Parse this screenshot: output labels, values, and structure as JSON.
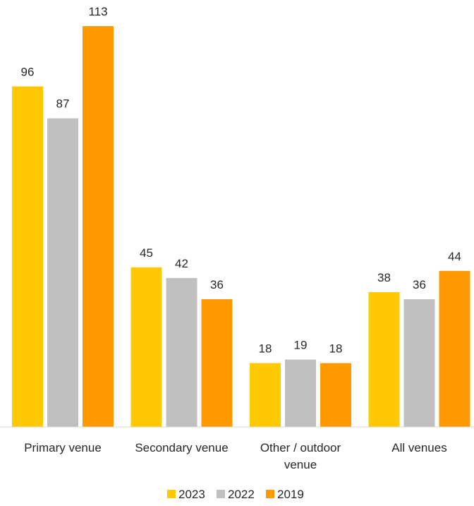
{
  "chart_data": {
    "type": "bar",
    "title": "",
    "xlabel": "",
    "ylabel": "",
    "ylim": [
      0,
      113
    ],
    "grid": false,
    "legend_position": "bottom",
    "categories": [
      [
        "Primary venue"
      ],
      [
        "Secondary venue"
      ],
      [
        "Other  / outdoor",
        "venue"
      ],
      [
        "All venues"
      ]
    ],
    "series": [
      {
        "name": "2023",
        "color": "#FFC800",
        "values": [
          96,
          45,
          18,
          38
        ]
      },
      {
        "name": "2022",
        "color": "#BFBFBF",
        "values": [
          87,
          42,
          19,
          36
        ]
      },
      {
        "name": "2019",
        "color": "#FF9900",
        "values": [
          113,
          36,
          18,
          44
        ]
      }
    ]
  }
}
